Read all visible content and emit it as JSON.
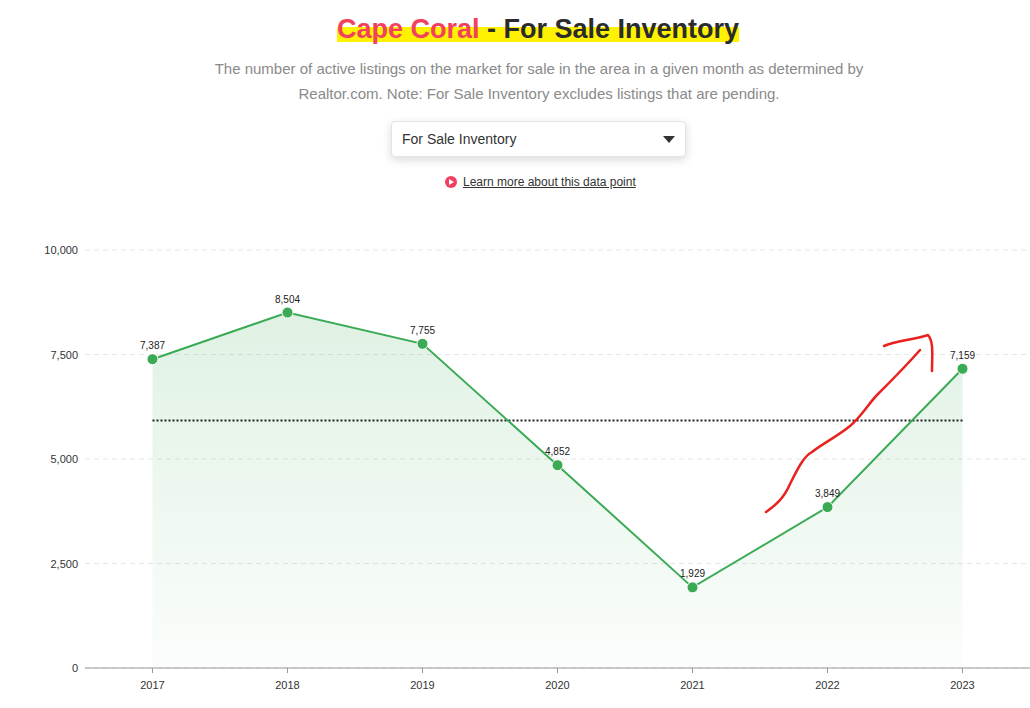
{
  "page": {
    "place": "Cape Coral",
    "title": "- For Sale Inventory",
    "subtitle": [
      "The number of active listings on the market for sale in the area in a given month as determined by",
      "Realtor.com. Note: For Sale Inventory excludes listings that are pending."
    ],
    "dropdown": "For Sale Inventory",
    "link": "Learn more about this data point"
  },
  "chart_data": {
    "type": "line",
    "categories": [
      "2017",
      "2018",
      "2019",
      "2020",
      "2021",
      "2022",
      "2023"
    ],
    "values": [
      7387,
      8504,
      7755,
      4852,
      1929,
      3849,
      7159
    ],
    "value_labels": [
      "7,387",
      "8,504",
      "7,755",
      "4,852",
      "1,929",
      "3,849",
      "7,159"
    ],
    "average": 5919,
    "color": "#3aaa55",
    "marker": "circle",
    "data_labels": true,
    "grid": true,
    "ylim": [
      0,
      10000
    ],
    "yticks": [
      0,
      {
        "value": 2500,
        "label": "2,500"
      },
      {
        "value": 5000,
        "label": "5,000"
      },
      {
        "value": 7500,
        "label": "7,500"
      },
      {
        "value": 10000,
        "label": "10,000"
      }
    ]
  }
}
